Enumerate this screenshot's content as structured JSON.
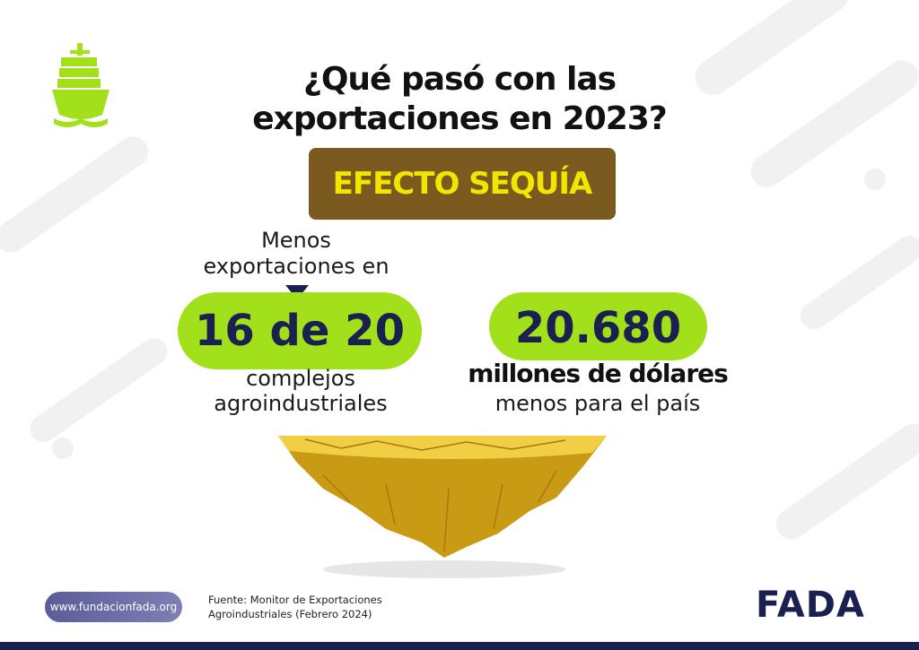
{
  "header": {
    "title_lines": [
      "¿Qué pasó con las",
      "exportaciones en 2023?"
    ],
    "banner": "EFECTO SEQUÍA"
  },
  "left": {
    "above": [
      "Menos",
      "exportaciones en"
    ],
    "highlight": "16 de 20",
    "below": [
      "complejos",
      "agroindustriales"
    ]
  },
  "right": {
    "highlight": "20.680",
    "below_bold": "millones de dólares",
    "below": "menos para el país"
  },
  "footer": {
    "url": "www.fundacionfada.org",
    "source_lines": [
      "Fuente: Monitor de Exportaciones",
      "Agroindustriales (Febrero 2024)"
    ],
    "logo": "FADA"
  }
}
